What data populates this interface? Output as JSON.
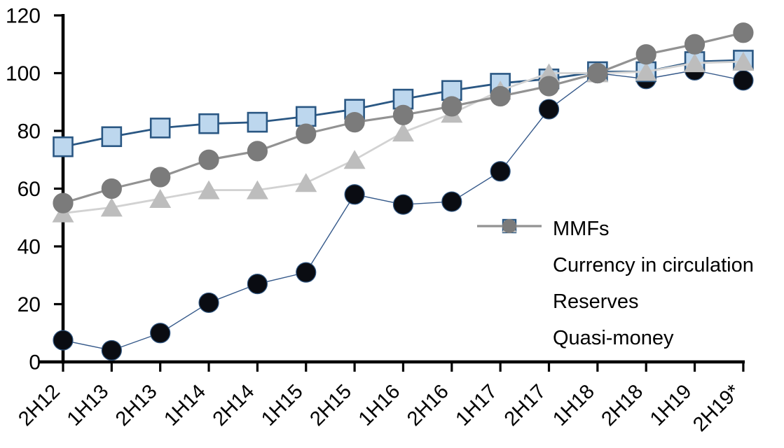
{
  "chart_data": {
    "type": "line",
    "title": "",
    "xlabel": "",
    "ylabel": "",
    "grid": false,
    "legend_position": "inside-right",
    "ylim": [
      0,
      120
    ],
    "yticks": [
      0,
      20,
      40,
      60,
      80,
      100,
      120
    ],
    "categories": [
      "2H12",
      "1H13",
      "2H13",
      "1H14",
      "2H14",
      "1H15",
      "2H15",
      "1H16",
      "2H16",
      "1H17",
      "2H17",
      "1H18",
      "2H18",
      "1H19",
      "2H19*"
    ],
    "series": [
      {
        "name": "MMFs",
        "marker": "circle",
        "marker_color": "#0a0c12",
        "marker_border": "#2f5580",
        "line_color": "#35598a",
        "line_width": 1.4,
        "values": [
          7.5,
          4,
          10,
          20.5,
          27,
          31,
          58,
          54.5,
          55.5,
          66,
          87.5,
          100,
          98,
          101,
          97.5
        ]
      },
      {
        "name": "Currency in circulation",
        "marker": "square",
        "marker_color": "#bdd7ee",
        "marker_border": "#2a5783",
        "line_color": "#2a5783",
        "line_width": 2.8,
        "values": [
          74.5,
          78,
          81,
          82.5,
          83,
          85,
          87.5,
          91,
          94,
          96.5,
          98,
          100.5,
          100.5,
          104,
          104.5
        ]
      },
      {
        "name": "Reserves",
        "marker": "triangle",
        "marker_color": "#bdbdbd",
        "marker_border": "#bdbdbd",
        "line_color": "#d2d2d2",
        "line_width": 2.8,
        "values": [
          51.5,
          53.5,
          56.5,
          59.5,
          59.5,
          62,
          70,
          79.5,
          86,
          94,
          100,
          100,
          100.5,
          103.5,
          104
        ]
      },
      {
        "name": "Quasi-money",
        "marker": "circle",
        "marker_color": "#7b7b7b",
        "marker_border": "#7b7b7b",
        "line_color": "#929292",
        "line_width": 3.2,
        "values": [
          55,
          60,
          64,
          70,
          73,
          79,
          83,
          85.5,
          88.5,
          92,
          95.5,
          100,
          106.5,
          110,
          114
        ]
      }
    ],
    "axis_color": "#000000",
    "tick_label_color": "#000000"
  }
}
